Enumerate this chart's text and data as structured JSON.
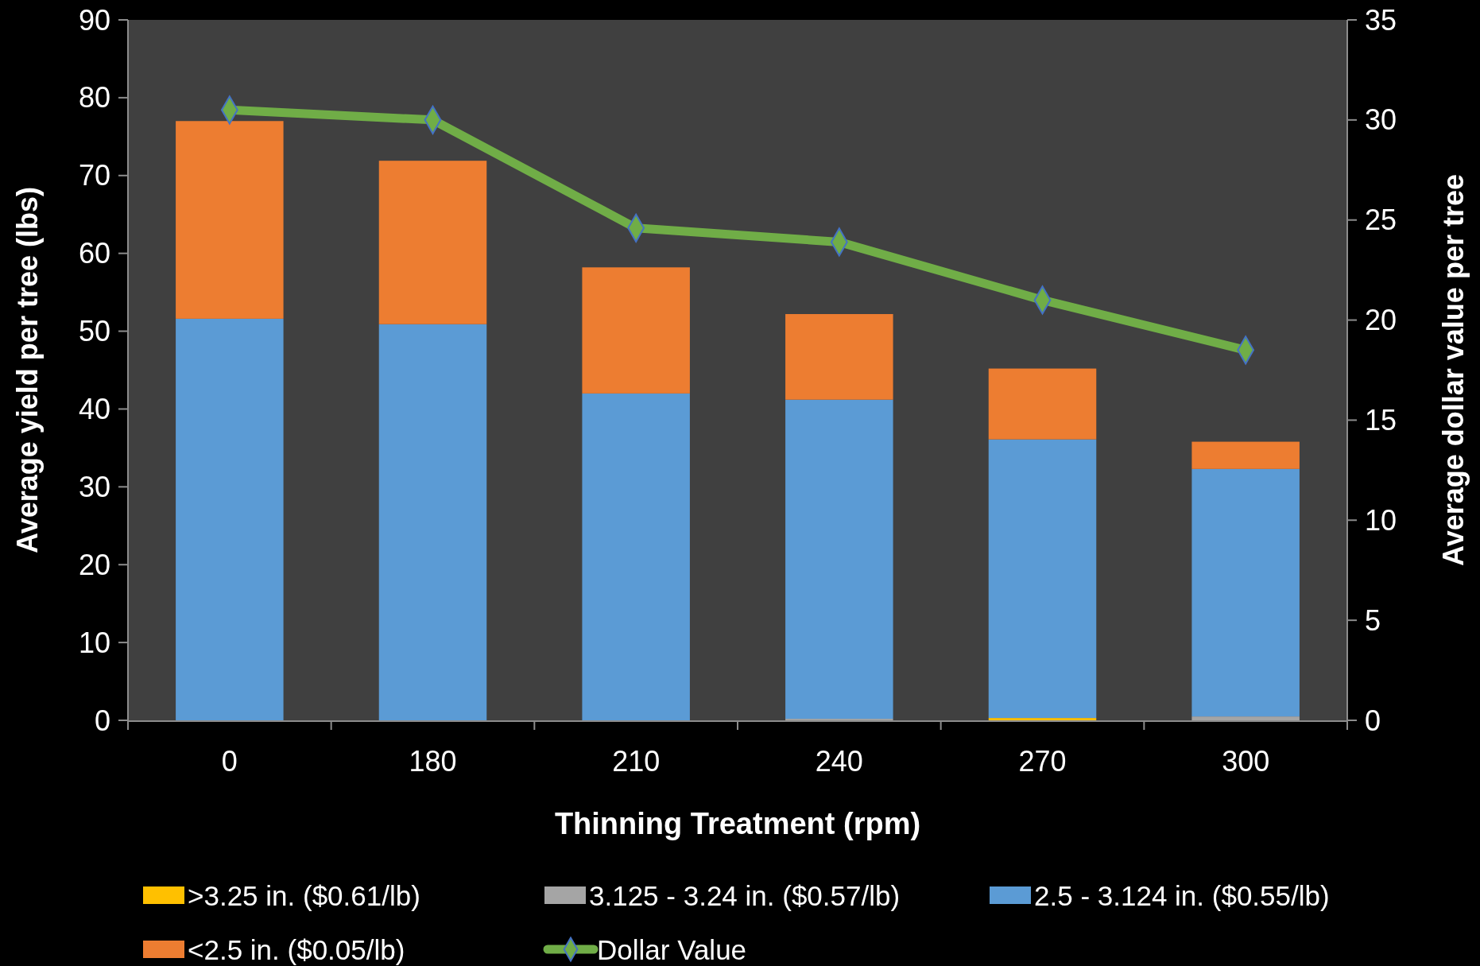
{
  "chart_data": {
    "type": "bar",
    "stacked": true,
    "xlabel": "Thinning Treatment (rpm)",
    "ylabel": "Average yield per tree (lbs)",
    "y2label": "Average dollar value per tree",
    "categories": [
      "0",
      "180",
      "210",
      "240",
      "270",
      "300"
    ],
    "series": [
      {
        "name": ">3.25 in. ($0.61/lb)",
        "color": "#ffc000",
        "values": [
          0,
          0,
          0,
          0,
          0.3,
          0
        ]
      },
      {
        "name": "3.125 - 3.24 in. ($0.57/lb)",
        "color": "#a5a5a5",
        "values": [
          0,
          0,
          0,
          0.2,
          0,
          0.5
        ]
      },
      {
        "name": "2.5 - 3.124 in. ($0.55/lb)",
        "color": "#5b9bd5",
        "values": [
          51.6,
          50.9,
          42.0,
          41.0,
          35.8,
          31.8
        ]
      },
      {
        "name": "<2.5 in. ($0.05/lb)",
        "color": "#ed7d31",
        "values": [
          25.4,
          21.0,
          16.2,
          11.0,
          9.1,
          3.5
        ]
      },
      {
        "name": "Dollar Value",
        "type": "line",
        "axis": "y2",
        "color": "#70ad47",
        "marker": "diamond",
        "values": [
          30.5,
          30.0,
          24.6,
          23.9,
          21.0,
          18.5
        ]
      }
    ],
    "ylim": [
      0,
      90
    ],
    "yticks": [
      0,
      10,
      20,
      30,
      40,
      50,
      60,
      70,
      80,
      90
    ],
    "y2lim": [
      0,
      35
    ],
    "y2ticks": [
      0,
      5,
      10,
      15,
      20,
      25,
      30,
      35
    ],
    "legend": "bottom",
    "grid": false
  }
}
